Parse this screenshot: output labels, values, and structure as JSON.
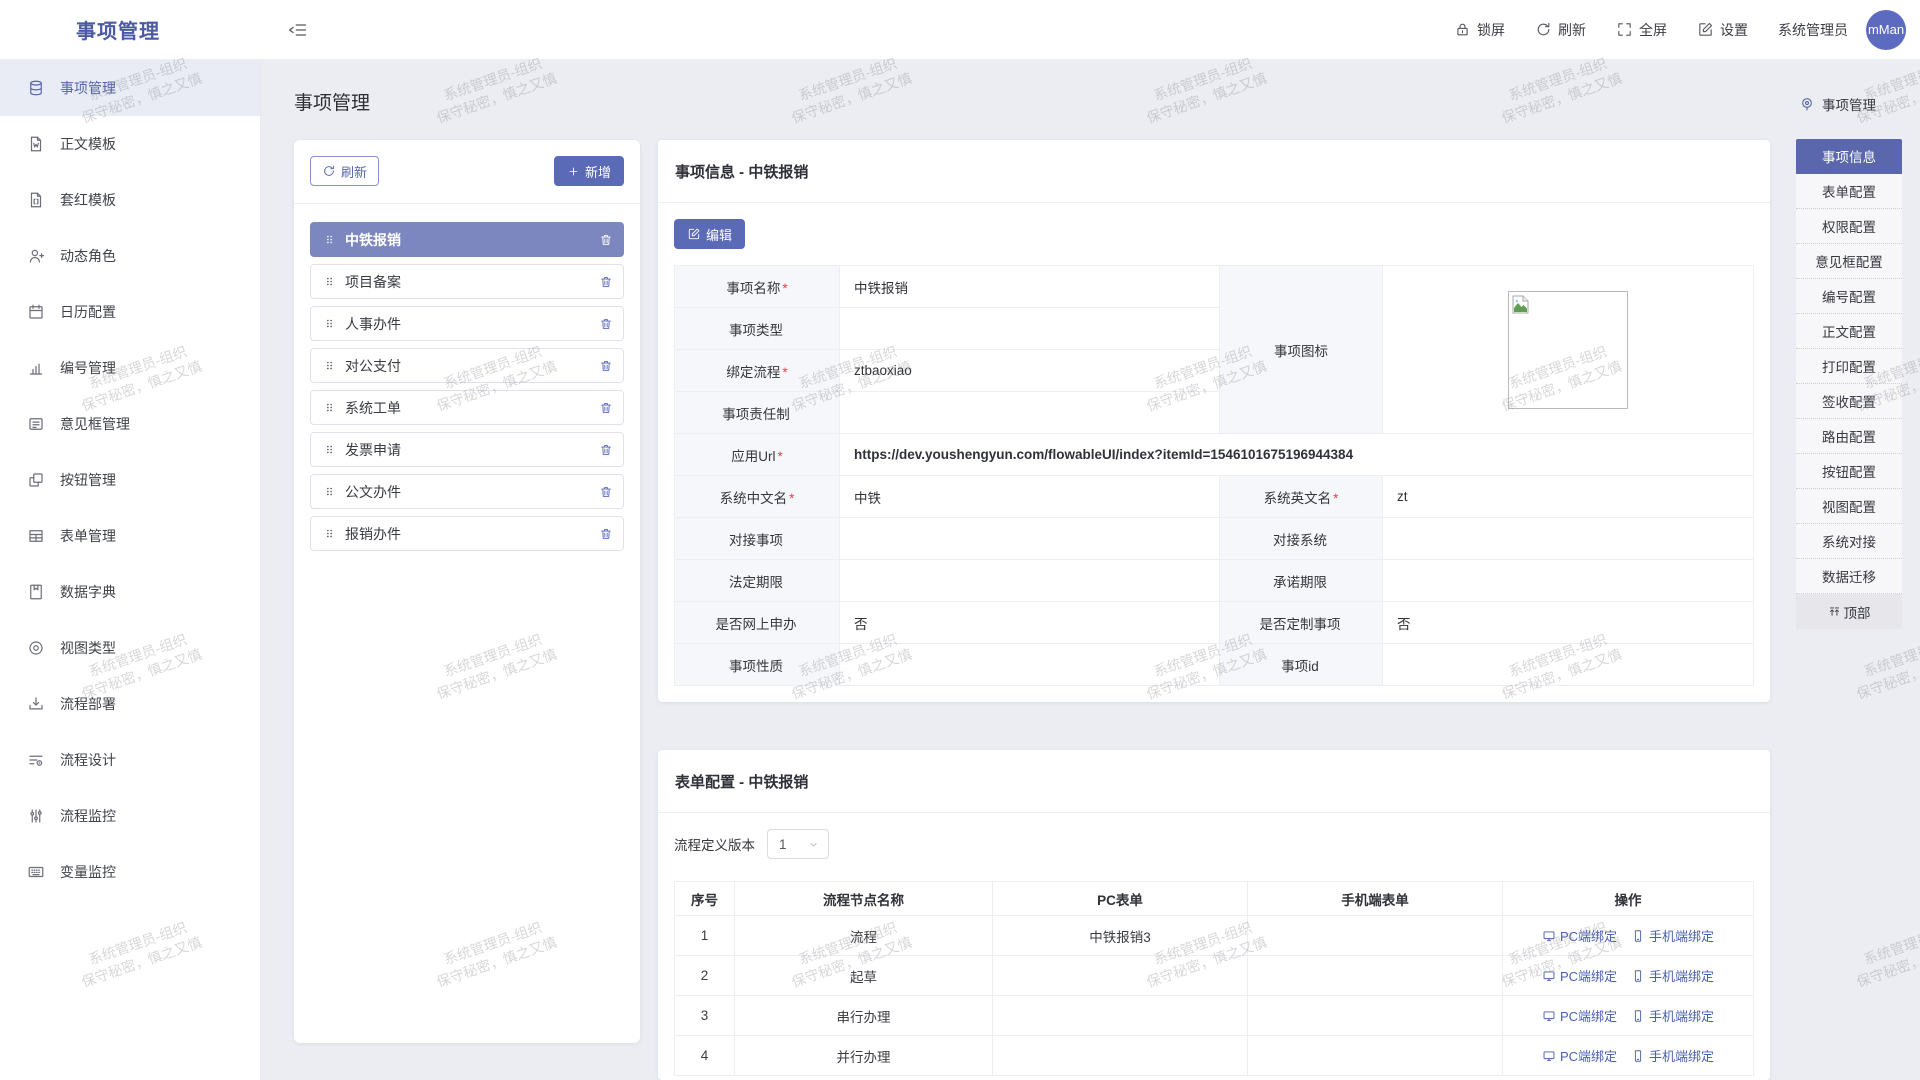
{
  "header": {
    "logo_title": "事项管理",
    "actions": [
      {
        "label": "锁屏",
        "icon": "lock-icon"
      },
      {
        "label": "刷新",
        "icon": "refresh-icon"
      },
      {
        "label": "全屏",
        "icon": "fullscreen-icon"
      },
      {
        "label": "设置",
        "icon": "settings-icon"
      }
    ],
    "username": "系统管理员",
    "avatar_text": "mMan"
  },
  "sidebar": {
    "items": [
      {
        "label": "事项管理",
        "icon": "database-icon",
        "active": true
      },
      {
        "label": "正文模板",
        "icon": "document-template-icon",
        "active": false
      },
      {
        "label": "套红模板",
        "icon": "red-header-template-icon",
        "active": false
      },
      {
        "label": "动态角色",
        "icon": "user-plus-icon",
        "active": false
      },
      {
        "label": "日历配置",
        "icon": "calendar-icon",
        "active": false
      },
      {
        "label": "编号管理",
        "icon": "bar-chart-icon",
        "active": false
      },
      {
        "label": "意见框管理",
        "icon": "comment-box-icon",
        "active": false
      },
      {
        "label": "按钮管理",
        "icon": "button-icon",
        "active": false
      },
      {
        "label": "表单管理",
        "icon": "table-icon",
        "active": false
      },
      {
        "label": "数据字典",
        "icon": "dictionary-icon",
        "active": false
      },
      {
        "label": "视图类型",
        "icon": "view-icon",
        "active": false
      },
      {
        "label": "流程部署",
        "icon": "deploy-icon",
        "active": false
      },
      {
        "label": "流程设计",
        "icon": "design-icon",
        "active": false
      },
      {
        "label": "流程监控",
        "icon": "sliders-icon",
        "active": false
      },
      {
        "label": "变量监控",
        "icon": "keyboard-icon",
        "active": false
      }
    ]
  },
  "page": {
    "title": "事项管理"
  },
  "item_list": {
    "refresh_label": "刷新",
    "add_label": "新增",
    "items": [
      {
        "name": "中铁报销",
        "selected": true
      },
      {
        "name": "项目备案",
        "selected": false
      },
      {
        "name": "人事办件",
        "selected": false
      },
      {
        "name": "对公支付",
        "selected": false
      },
      {
        "name": "系统工单",
        "selected": false
      },
      {
        "name": "发票申请",
        "selected": false
      },
      {
        "name": "公文办件",
        "selected": false
      },
      {
        "name": "报销办件",
        "selected": false
      }
    ]
  },
  "info_card": {
    "title": "事项信息 - 中铁报销",
    "edit_label": "编辑",
    "icon_label": "事项图标",
    "fields": [
      {
        "label": "事项名称",
        "star": "*",
        "value": "中铁报销"
      },
      {
        "label": "事项类型",
        "star": "",
        "value": ""
      },
      {
        "label": "绑定流程",
        "star": "*",
        "value": "ztbaoxiao"
      },
      {
        "label": "事项责任制",
        "star": "",
        "value": ""
      },
      {
        "label": "应用Url",
        "star": "*",
        "value": "https://dev.youshengyun.com/flowableUI/index?itemId=1546101675196944384"
      },
      {
        "label": "系统中文名",
        "star": "*",
        "value": "中铁",
        "label2": "系统英文名",
        "star2": "*",
        "value2": "zt"
      },
      {
        "label": "对接事项",
        "star": "",
        "value": "",
        "label2": "对接系统",
        "star2": "",
        "value2": ""
      },
      {
        "label": "法定期限",
        "star": "",
        "value": "",
        "label2": "承诺期限",
        "star2": "",
        "value2": ""
      },
      {
        "label": "是否网上申办",
        "star": "",
        "value": "否",
        "label2": "是否定制事项",
        "star2": "",
        "value2": "否"
      },
      {
        "label": "事项性质",
        "star": "",
        "value": "",
        "label2": "事项id",
        "star2": "",
        "value2": ""
      }
    ]
  },
  "form_card": {
    "title": "表单配置 - 中铁报销",
    "version_label": "流程定义版本",
    "version_value": "1",
    "headers": [
      "序号",
      "流程节点名称",
      "PC表单",
      "手机端表单",
      "操作"
    ],
    "pc_bind_label": "PC端绑定",
    "mobile_bind_label": "手机端绑定",
    "rows": [
      {
        "no": "1",
        "node": "流程",
        "pc_form": "中铁报销3",
        "mobile_form": ""
      },
      {
        "no": "2",
        "node": "起草",
        "pc_form": "",
        "mobile_form": ""
      },
      {
        "no": "3",
        "node": "串行办理",
        "pc_form": "",
        "mobile_form": ""
      },
      {
        "no": "4",
        "node": "并行办理",
        "pc_form": "",
        "mobile_form": ""
      }
    ]
  },
  "anchor": {
    "title": "事项管理",
    "items": [
      "事项信息",
      "表单配置",
      "权限配置",
      "意见框配置",
      "编号配置",
      "正文配置",
      "打印配置",
      "签收配置",
      "路由配置",
      "按钮配置",
      "视图配置",
      "系统对接",
      "数据迁移"
    ],
    "active_item": "事项信息",
    "back_top_label": "顶部"
  },
  "watermark": {
    "line1": "系统管理员-组织",
    "line2": "保守秘密，慎之又慎"
  },
  "colors": {
    "primary": "#5b6ab6",
    "selected_item_bg": "#7b87be",
    "link": "#4a5fae",
    "logo_text": "#4a5aa5",
    "avatar_bg": "#5c6bc0",
    "label_cell_bg": "#f6f7fa",
    "page_bg": "#ebedf3"
  }
}
